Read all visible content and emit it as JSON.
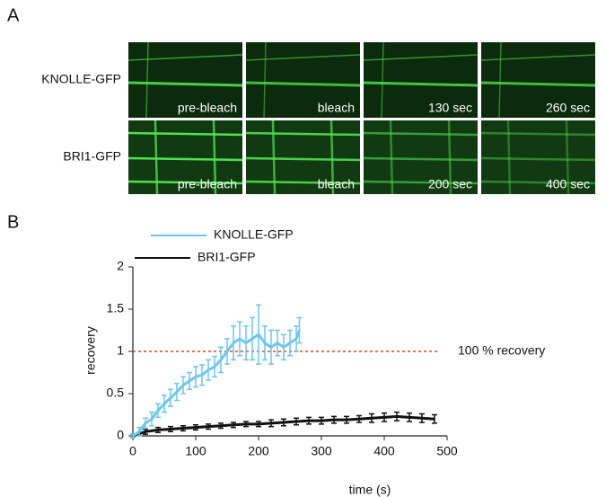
{
  "figure": {
    "panels": [
      "A",
      "B"
    ]
  },
  "images": {
    "rows": [
      {
        "label": "KNOLLE-GFP",
        "frames": [
          "pre-bleach",
          "bleach",
          "130 sec",
          "260 sec"
        ]
      },
      {
        "label": "BRI1-GFP",
        "frames": [
          "pre-bleach",
          "bleach",
          "200 sec",
          "400 sec"
        ]
      }
    ]
  },
  "chart_data": {
    "type": "line",
    "xlabel": "time (s)",
    "ylabel": "recovery",
    "xlim": [
      0,
      500
    ],
    "xticks": [
      0,
      100,
      200,
      300,
      400,
      500
    ],
    "ylim": [
      0,
      2
    ],
    "yticks": [
      0,
      0.5,
      1,
      1.5,
      2
    ],
    "reference_line": {
      "value": 1,
      "label": "100 % recovery",
      "color": "#e0401a"
    },
    "series": [
      {
        "name": "KNOLLE-GFP",
        "color": "#6ec6ea",
        "x": [
          0,
          10,
          20,
          30,
          40,
          50,
          60,
          70,
          80,
          90,
          100,
          110,
          120,
          130,
          140,
          150,
          160,
          170,
          180,
          190,
          200,
          210,
          220,
          230,
          240,
          250,
          260,
          265
        ],
        "values": [
          0,
          0.05,
          0.15,
          0.2,
          0.3,
          0.38,
          0.45,
          0.52,
          0.6,
          0.65,
          0.7,
          0.72,
          0.78,
          0.82,
          0.9,
          1.0,
          1.1,
          1.15,
          1.1,
          1.15,
          1.2,
          1.1,
          1.05,
          1.1,
          1.05,
          1.1,
          1.15,
          1.25
        ],
        "errors": [
          0.02,
          0.05,
          0.06,
          0.08,
          0.08,
          0.1,
          0.1,
          0.1,
          0.1,
          0.1,
          0.12,
          0.12,
          0.12,
          0.12,
          0.15,
          0.15,
          0.2,
          0.2,
          0.2,
          0.25,
          0.35,
          0.2,
          0.2,
          0.15,
          0.15,
          0.15,
          0.15,
          0.15
        ]
      },
      {
        "name": "BRI1-GFP",
        "color": "#111111",
        "x": [
          0,
          20,
          40,
          60,
          80,
          100,
          120,
          140,
          160,
          180,
          200,
          220,
          240,
          260,
          280,
          300,
          320,
          340,
          360,
          380,
          400,
          420,
          440,
          460,
          480
        ],
        "values": [
          0,
          0.05,
          0.07,
          0.08,
          0.09,
          0.1,
          0.11,
          0.12,
          0.13,
          0.14,
          0.14,
          0.15,
          0.16,
          0.17,
          0.18,
          0.18,
          0.19,
          0.19,
          0.2,
          0.21,
          0.22,
          0.23,
          0.22,
          0.21,
          0.2
        ],
        "errors": [
          0.02,
          0.03,
          0.03,
          0.03,
          0.03,
          0.03,
          0.03,
          0.03,
          0.03,
          0.03,
          0.03,
          0.04,
          0.04,
          0.04,
          0.04,
          0.04,
          0.04,
          0.04,
          0.04,
          0.05,
          0.05,
          0.05,
          0.05,
          0.05,
          0.05
        ]
      }
    ]
  }
}
